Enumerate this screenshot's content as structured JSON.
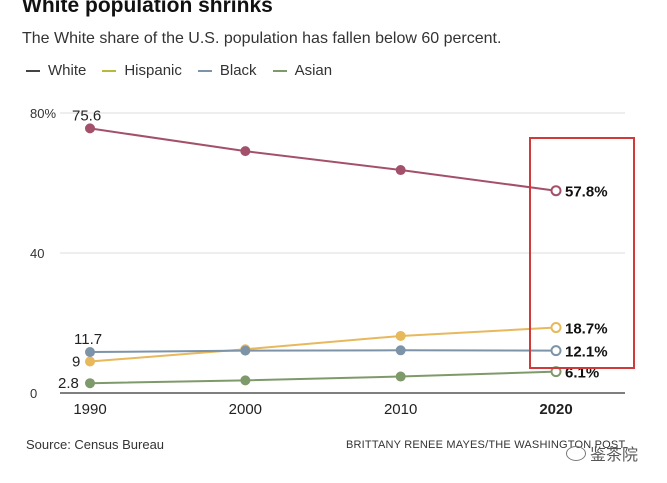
{
  "colors": {
    "White": "#a3516a",
    "Hispanic": "#e8b85c",
    "Black": "#7d93a8",
    "Asian": "#7f9a6a",
    "Hispanic_legend": "#b8b83c",
    "highlight": "#d13a3a"
  },
  "chart_data": {
    "type": "line",
    "title": "White population shrinks",
    "subtitle": "The White share of the U.S. population has fallen below 60 percent.",
    "x": [
      1990,
      2000,
      2010,
      2020
    ],
    "x_tick_labels": [
      "1990",
      "2000",
      "2010",
      "2020"
    ],
    "y_tick_labels": [
      "80%",
      "40",
      "0"
    ],
    "ylim": [
      0,
      80
    ],
    "series": [
      {
        "name": "White",
        "values": [
          75.6,
          69.1,
          63.7,
          57.8
        ],
        "start_label": "75.6",
        "end_label": "57.8%"
      },
      {
        "name": "Hispanic",
        "values": [
          9.0,
          12.5,
          16.3,
          18.7
        ],
        "start_label": "9",
        "end_label": "18.7%"
      },
      {
        "name": "Black",
        "values": [
          11.7,
          12.1,
          12.2,
          12.1
        ],
        "start_label": "11.7",
        "end_label": "12.1%"
      },
      {
        "name": "Asian",
        "values": [
          2.8,
          3.6,
          4.7,
          6.1
        ],
        "start_label": "2.8",
        "end_label": "6.1%"
      }
    ],
    "legend": [
      "White",
      "Hispanic",
      "Black",
      "Asian"
    ],
    "source": "Source: Census Bureau",
    "credit": "BRITTANY RENEE MAYES/THE WASHINGTON POST"
  },
  "watermark": "鉴茶院"
}
